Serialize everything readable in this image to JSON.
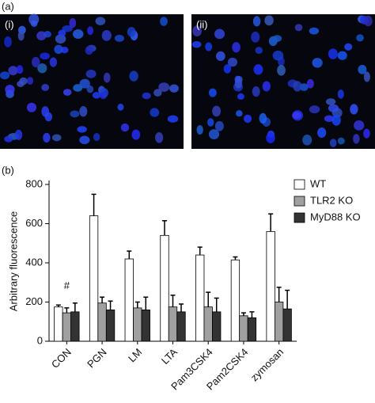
{
  "panel_labels": {
    "a": "(a)",
    "b": "(b)",
    "images": [
      "(i)",
      "(ii)"
    ]
  },
  "chart_data": {
    "type": "bar",
    "ylabel": "Arbitrary fluorescence",
    "categories": [
      "CON",
      "PGN",
      "LM",
      "LTA",
      "Pam3CSK4",
      "Pam2CSK4",
      "zymosan"
    ],
    "series": [
      {
        "name": "WT",
        "color": "#ffffff",
        "values": [
          175,
          640,
          420,
          540,
          440,
          415,
          560
        ],
        "errors": [
          10,
          110,
          40,
          75,
          40,
          15,
          90
        ]
      },
      {
        "name": "TLR2 KO",
        "color": "#a0a0a0",
        "values": [
          145,
          195,
          170,
          175,
          175,
          130,
          200
        ],
        "errors": [
          25,
          30,
          30,
          60,
          75,
          15,
          75
        ]
      },
      {
        "name": "MyD88 KO",
        "color": "#333333",
        "values": [
          150,
          160,
          160,
          150,
          150,
          120,
          165
        ],
        "errors": [
          45,
          45,
          65,
          40,
          70,
          30,
          95
        ]
      }
    ],
    "annotation": "#",
    "annotation_value": 280,
    "ylim": [
      0,
      820
    ],
    "yticks": [
      0,
      200,
      400,
      600,
      800
    ],
    "legend": "right"
  }
}
